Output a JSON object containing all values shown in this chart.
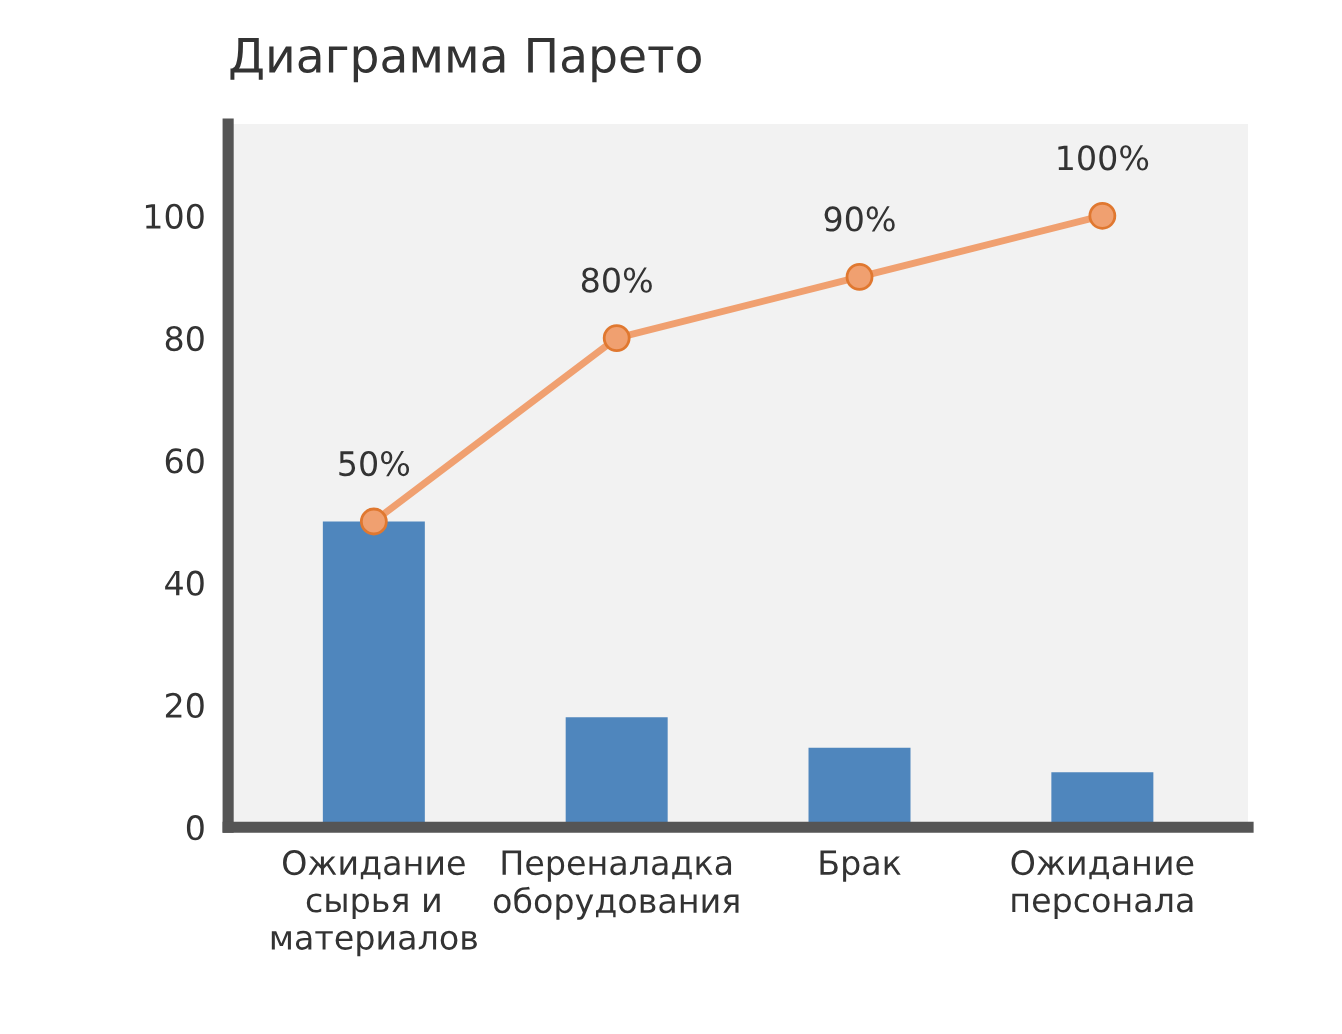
{
  "chart_data": {
    "type": "bar",
    "title": "Диаграмма Парето",
    "categories": [
      "Ожидание\nсырья и\nматериалов",
      "Переналадка\nоборудования",
      "Брак",
      "Ожидание\nперсонала"
    ],
    "series": [
      {
        "color": "#4f86bd",
        "values": [
          50,
          18,
          13,
          9
        ]
      },
      {
        "type": "line",
        "color": "#f0a070",
        "values": [
          50,
          80,
          90,
          100
        ],
        "value_labels": [
          "50%",
          "80%",
          "90%",
          "100%"
        ]
      }
    ],
    "ylim": [
      0,
      115
    ],
    "yticks": [
      0,
      20,
      40,
      60,
      80,
      100
    ],
    "grid": false,
    "marker": "circle",
    "line_style": "solid"
  }
}
